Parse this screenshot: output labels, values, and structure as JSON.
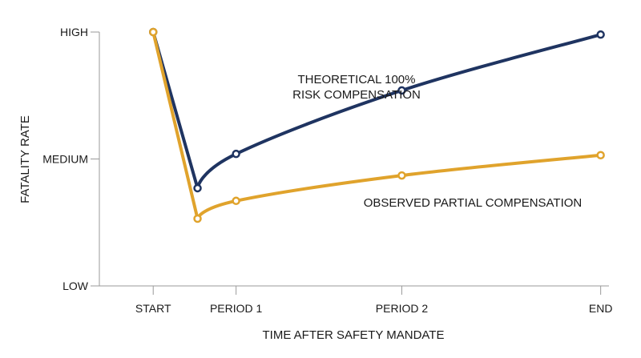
{
  "chart_data": {
    "type": "line",
    "title": "",
    "xlabel": "TIME AFTER SAFETY MANDATE",
    "ylabel": "FATALITY RATE",
    "x_ticks": [
      "START",
      "PERIOD 1",
      "PERIOD 2",
      "END"
    ],
    "x_tick_values": [
      0,
      2,
      6,
      10.8
    ],
    "y_ticks": [
      "LOW",
      "MEDIUM",
      "HIGH"
    ],
    "y_tick_values": [
      0,
      1,
      2
    ],
    "xlim": [
      -1.3,
      11
    ],
    "ylim": [
      0,
      2
    ],
    "grid": false,
    "series": [
      {
        "label_lines": [
          "THEORETICAL 100%",
          "RISK COMPENSATION"
        ],
        "color": "#1f3461",
        "x": [
          0,
          1.07,
          2,
          6,
          10.8
        ],
        "y": [
          2.0,
          0.77,
          1.04,
          1.54,
          1.98
        ]
      },
      {
        "label_lines": [
          "OBSERVED PARTIAL COMPENSATION"
        ],
        "color": "#e0a32c",
        "x": [
          0,
          1.07,
          2,
          6,
          10.8
        ],
        "y": [
          2.0,
          0.53,
          0.67,
          0.87,
          1.03
        ]
      }
    ]
  }
}
